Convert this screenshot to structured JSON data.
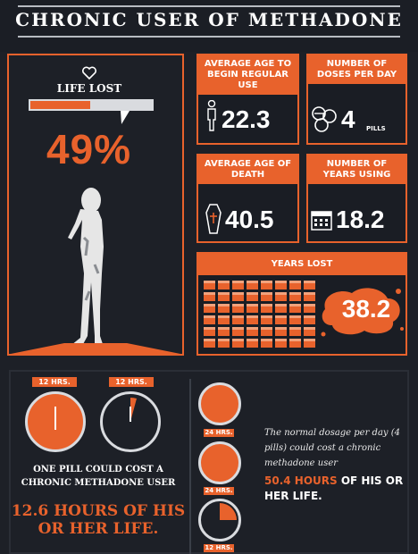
{
  "header": {
    "title": "CHRONIC USER OF METHADONE"
  },
  "life_lost": {
    "label": "LIFE LOST",
    "percent": "49%",
    "progress": 0.49
  },
  "stats": {
    "avg_age_begin": {
      "label": "AVERAGE AGE TO BEGIN REGULAR USE",
      "value": "22.3"
    },
    "doses_per_day": {
      "label": "NUMBER OF DOSES PER DAY",
      "value": "4",
      "unit": "PILLS"
    },
    "avg_age_death": {
      "label": "AVERAGE AGE OF DEATH",
      "value": "40.5"
    },
    "years_using": {
      "label": "NUMBER OF YEARS USING",
      "value": "18.2"
    }
  },
  "years_lost": {
    "label": "YEARS LOST",
    "value": "38.2"
  },
  "pill_cost": {
    "clock_labels": [
      "12 HRS.",
      "12 HRS."
    ],
    "text": "ONE PILL COULD COST A CHRONIC METHADONE USER",
    "highlight": "12.6 HOURS OF HIS OR HER LIFE."
  },
  "daily_cost": {
    "clock_labels": [
      "24 HRS.",
      "24 HRS.",
      "12 HRS."
    ],
    "text": "The normal dosage per day (4 pills) could cost a chronic methadone user",
    "highlight": "50.4 HOURS",
    "suffix": " OF HIS OR HER LIFE."
  },
  "colors": {
    "accent": "#e8622c",
    "background": "#1d2027"
  }
}
